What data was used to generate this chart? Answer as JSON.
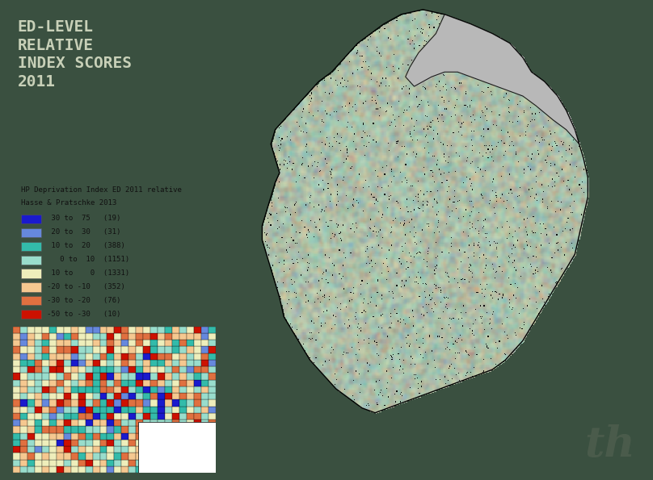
{
  "background_color": "#3a5040",
  "title_lines": [
    "ED-LEVEL",
    "RELATIVE",
    "INDEX SCORES",
    "2011"
  ],
  "title_color": "#c8d0b8",
  "title_fontsize": 14,
  "legend_title_line1": "HP Deprivation Index ED 2011 relative",
  "legend_title_line2": "Hasse & Pratschke 2013",
  "legend_entries": [
    {
      "label": " 30 to  75   (19)",
      "color": "#1a1acd"
    },
    {
      "label": " 20 to  30   (31)",
      "color": "#6688dd"
    },
    {
      "label": " 10 to  20   (388)",
      "color": "#33bbaa"
    },
    {
      "label": "   0 to  10  (1151)",
      "color": "#99ddcc"
    },
    {
      "label": " 10 to    0  (1331)",
      "color": "#eeeebb"
    },
    {
      "label": "-20 to -10   (352)",
      "color": "#f5c890"
    },
    {
      "label": "-30 to -20   (76)",
      "color": "#e07040"
    },
    {
      "label": "-50 to -30   (10)",
      "color": "#cc1100"
    }
  ],
  "legend_bg": "#c0c4b8",
  "legend_text_color": "#111111",
  "legend_fontsize": 6.5,
  "watermark_text": "th",
  "watermark_color": "#506050",
  "watermark_fontsize": 38,
  "map_colors": [
    "#1a1acd",
    "#6688dd",
    "#33bbaa",
    "#99ddcc",
    "#eeeebb",
    "#f5c890",
    "#e07040",
    "#cc1100"
  ],
  "map_weights": [
    0.03,
    0.05,
    0.15,
    0.28,
    0.24,
    0.13,
    0.08,
    0.04
  ],
  "ni_color": "#b8b8b8",
  "white_color": "#ffffff"
}
